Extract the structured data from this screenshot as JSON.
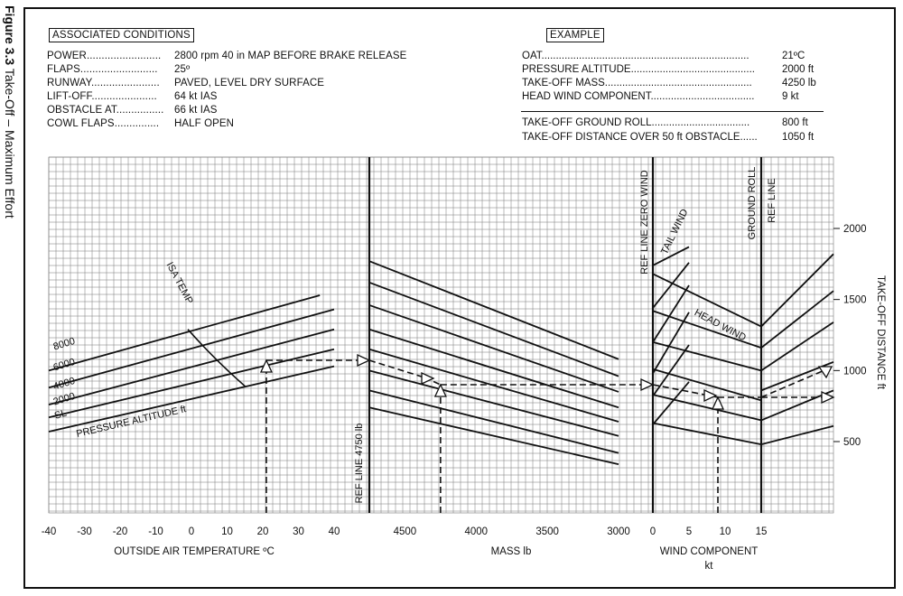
{
  "figure": {
    "number": "Figure 3.3",
    "title": "Take-Off – Maximum Effort"
  },
  "associated_conditions": {
    "heading": "ASSOCIATED CONDITIONS",
    "rows": [
      {
        "label": "POWER.........................",
        "value": "2800 rpm  40 in MAP BEFORE BRAKE RELEASE"
      },
      {
        "label": "FLAPS..........................",
        "value": "25º"
      },
      {
        "label": "RUNWAY.......................",
        "value": "PAVED, LEVEL DRY SURFACE"
      },
      {
        "label": "LIFT-OFF......................",
        "value": "64 kt IAS"
      },
      {
        "label": "OBSTACLE AT................",
        "value": "66 kt IAS"
      },
      {
        "label": "COWL FLAPS...............",
        "value": "HALF OPEN"
      }
    ]
  },
  "example": {
    "heading": "EXAMPLE",
    "rows": [
      {
        "label": "OAT........................................................................",
        "value": "21ºC"
      },
      {
        "label": "PRESSURE ALTITUDE...........................................",
        "value": "2000 ft"
      },
      {
        "label": "TAKE-OFF MASS...................................................",
        "value": "4250 lb"
      },
      {
        "label": "HEAD WIND COMPONENT....................................",
        "value": "9 kt"
      }
    ],
    "results": [
      {
        "label": "TAKE-OFF  GROUND ROLL..................................",
        "value": "800 ft"
      },
      {
        "label": "TAKE-OFF DISTANCE OVER 50 ft OBSTACLE......",
        "value": "1050 ft"
      }
    ]
  },
  "chart_data": {
    "type": "line",
    "panels": [
      {
        "name": "temperature",
        "xlabel": "OUTSIDE AIR TEMPERATURE  ºC",
        "x_ticks": [
          "-40",
          "-30",
          "-20",
          "-10",
          "0",
          "10",
          "20",
          "30",
          "40"
        ],
        "xlim": [
          -40,
          40
        ],
        "series_label": "PRESSURE ALTITUDE  ft",
        "curve_label": "ISA TEMP",
        "series": [
          {
            "name": "8000",
            "points": [
              [
                -40,
                1000
              ],
              [
                36,
                1530
              ]
            ]
          },
          {
            "name": "6000",
            "points": [
              [
                -40,
                880
              ],
              [
                40,
                1430
              ]
            ]
          },
          {
            "name": "4000",
            "points": [
              [
                -40,
                760
              ],
              [
                40,
                1290
              ]
            ]
          },
          {
            "name": "2000",
            "points": [
              [
                -40,
                670
              ],
              [
                40,
                1150
              ]
            ]
          },
          {
            "name": "SL",
            "points": [
              [
                -40,
                570
              ],
              [
                40,
                1030
              ]
            ]
          }
        ],
        "isa_curve": [
          [
            -1,
            1290
          ],
          [
            6,
            1090
          ],
          [
            15,
            890
          ]
        ]
      },
      {
        "name": "mass",
        "xlabel": "MASS   lb",
        "ref_line_label": "REF LINE  4750 lb",
        "x_ticks": [
          "4500",
          "4000",
          "3500",
          "3000"
        ],
        "xlim": [
          4750,
          3000
        ],
        "guide_lines": [
          [
            [
              4750,
              1770
            ],
            [
              3000,
              1080
            ]
          ],
          [
            [
              4750,
              1620
            ],
            [
              3000,
              960
            ]
          ],
          [
            [
              4750,
              1460
            ],
            [
              3000,
              850
            ]
          ],
          [
            [
              4750,
              1290
            ],
            [
              3000,
              740
            ]
          ],
          [
            [
              4750,
              1150
            ],
            [
              3000,
              640
            ]
          ],
          [
            [
              4750,
              1000
            ],
            [
              3000,
              540
            ]
          ],
          [
            [
              4750,
              860
            ],
            [
              3000,
              420
            ]
          ],
          [
            [
              4750,
              740
            ],
            [
              3000,
              340
            ]
          ]
        ]
      },
      {
        "name": "wind",
        "xlabel": "WIND COMPONENT",
        "xunit": "kt",
        "x_ticks": [
          "0",
          "5",
          "10",
          "15"
        ],
        "xlim": [
          0,
          15
        ],
        "labels": [
          "REF LINE ZERO WIND",
          "TAIL WIND",
          "HEAD WIND",
          "GROUND ROLL",
          "REF LINE"
        ],
        "headwind_lines": [
          [
            [
              0,
              1680
            ],
            [
              15,
              1310
            ]
          ],
          [
            [
              0,
              1420
            ],
            [
              15,
              1160
            ]
          ],
          [
            [
              0,
              1200
            ],
            [
              15,
              1000
            ]
          ],
          [
            [
              0,
              1010
            ],
            [
              15,
              790
            ]
          ],
          [
            [
              0,
              830
            ],
            [
              15,
              650
            ]
          ],
          [
            [
              0,
              630
            ],
            [
              15,
              480
            ]
          ]
        ],
        "tailwind_lines": [
          [
            [
              0,
              1740
            ],
            [
              5,
              1870
            ]
          ],
          [
            [
              0,
              1440
            ],
            [
              5,
              1760
            ]
          ],
          [
            [
              0,
              1200
            ],
            [
              5,
              1600
            ]
          ],
          [
            [
              0,
              980
            ],
            [
              5,
              1410
            ]
          ],
          [
            [
              0,
              820
            ],
            [
              5,
              1180
            ]
          ],
          [
            [
              0,
              620
            ],
            [
              5,
              920
            ]
          ]
        ]
      },
      {
        "name": "ground_roll",
        "ylabel": "TAKE-OFF DISTANCE  ft",
        "y_ticks": [
          "2000",
          "1500",
          "1000",
          "500"
        ],
        "guide_lines": [
          [
            [
              0,
              1310
            ],
            [
              1,
              1820
            ]
          ],
          [
            [
              0,
              1160
            ],
            [
              1,
              1560
            ]
          ],
          [
            [
              0,
              1000
            ],
            [
              1,
              1340
            ]
          ],
          [
            [
              0,
              860
            ],
            [
              1,
              1060
            ]
          ],
          [
            [
              0,
              650
            ],
            [
              1,
              860
            ]
          ],
          [
            [
              0,
              480
            ],
            [
              1,
              610
            ]
          ]
        ]
      }
    ],
    "example_path": {
      "oat": 21,
      "pressure_altitude": 2000,
      "mass": 4250,
      "head_wind": 9,
      "ground_roll": 800,
      "distance_50ft": 1050
    }
  }
}
